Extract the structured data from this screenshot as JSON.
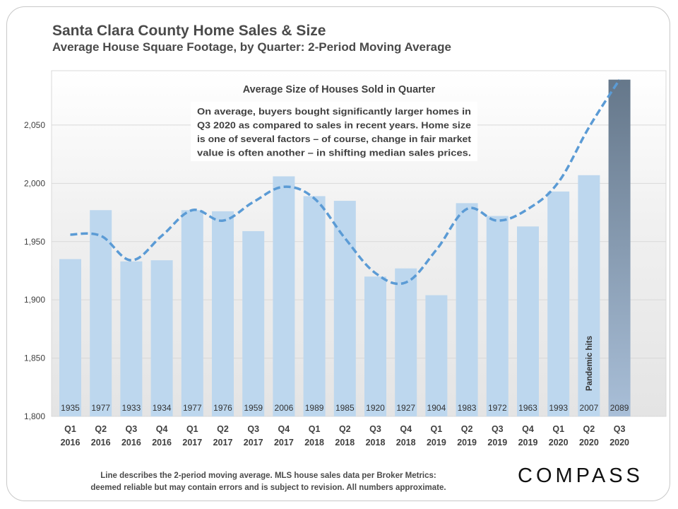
{
  "header": {
    "title": "Santa Clara County Home Sales & Size",
    "subtitle": "Average House Square Footage, by Quarter: 2-Period Moving Average"
  },
  "footer": {
    "note_line1": "Line describes the 2-period moving average. MLS house sales data per Broker Metrics:",
    "note_line2": "deemed reliable but may contain errors and is subject to revision. All numbers approximate.",
    "brand": "COMPASS"
  },
  "chart_data": {
    "type": "bar",
    "title": "Average Size of Houses Sold in Quarter",
    "categories": [
      [
        "Q1",
        "2016"
      ],
      [
        "Q2",
        "2016"
      ],
      [
        "Q3",
        "2016"
      ],
      [
        "Q4",
        "2016"
      ],
      [
        "Q1",
        "2017"
      ],
      [
        "Q2",
        "2017"
      ],
      [
        "Q3",
        "2017"
      ],
      [
        "Q4",
        "2017"
      ],
      [
        "Q1",
        "2018"
      ],
      [
        "Q2",
        "2018"
      ],
      [
        "Q3",
        "2018"
      ],
      [
        "Q4",
        "2018"
      ],
      [
        "Q1",
        "2019"
      ],
      [
        "Q2",
        "2019"
      ],
      [
        "Q3",
        "2019"
      ],
      [
        "Q4",
        "2019"
      ],
      [
        "Q1",
        "2020"
      ],
      [
        "Q2",
        "2020"
      ],
      [
        "Q3",
        "2020"
      ]
    ],
    "values": [
      1935,
      1977,
      1933,
      1934,
      1977,
      1976,
      1959,
      2006,
      1989,
      1985,
      1920,
      1927,
      1904,
      1983,
      1972,
      1963,
      1993,
      2007,
      2089
    ],
    "moving_average": [
      1956,
      1955,
      1934,
      1955,
      1977,
      1968,
      1984,
      1997,
      1987,
      1953,
      1923,
      1915,
      1943,
      1978,
      1968,
      1978,
      2001,
      2048,
      2089
    ],
    "ylim": [
      1800,
      2090
    ],
    "yticks": [
      1800,
      1850,
      1900,
      1950,
      2000,
      2050
    ],
    "ytick_labels": [
      "1,800",
      "1,850",
      "1,900",
      "1,950",
      "2,000",
      "2,050"
    ],
    "annotation": {
      "lines": [
        "On average, buyers bought significantly larger homes in",
        "Q3 2020 as compared to sales in recent years. Home size",
        "is one of several factors – of course, change in fair market",
        "value is often another – in shifting median sales prices."
      ]
    },
    "event_label": "Pandemic hits",
    "colors": {
      "bar": "#bdd7ee",
      "highlight_bar_top": "#65778a",
      "highlight_bar_bottom": "#a9bfd8",
      "line": "#5b9bd5",
      "grid": "#d9d9d9"
    }
  }
}
